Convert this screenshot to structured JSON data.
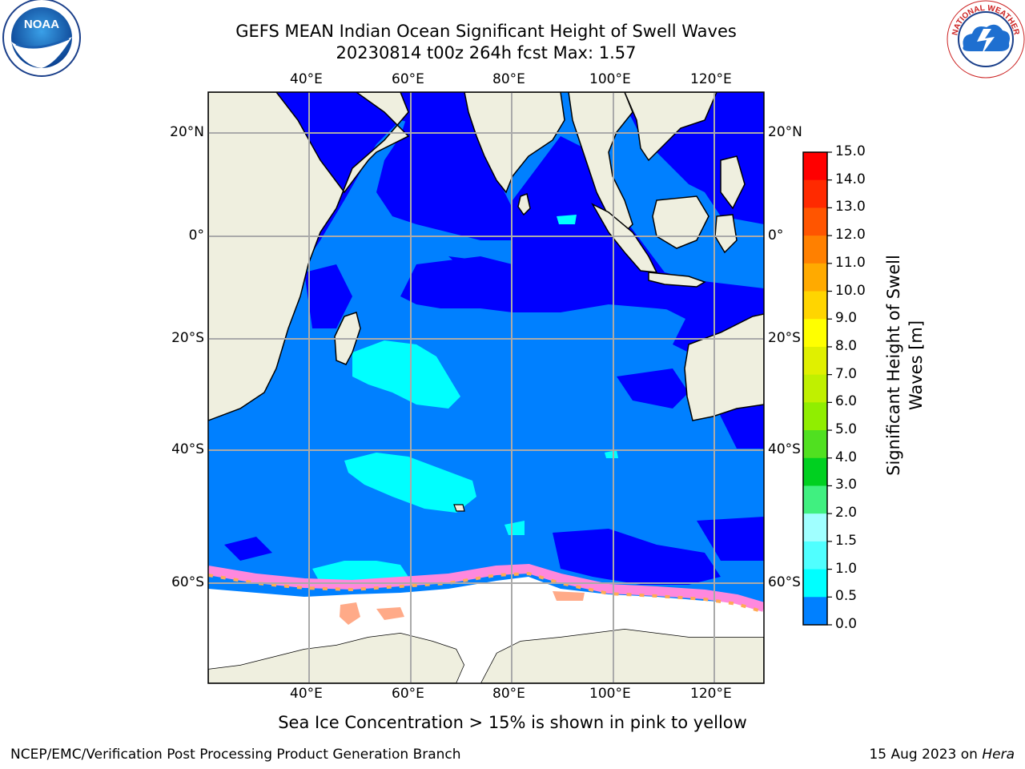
{
  "header": {
    "title_line1": "GEFS MEAN Indian Ocean Significant Height of Swell Waves",
    "title_line2": "20230814 t00z 264h fcst   Max: 1.57"
  },
  "logos": {
    "left": {
      "name": "noara-logo",
      "text": "NOAA"
    },
    "right": {
      "name": "nws-logo",
      "text": "NATIONAL WEATHER SERVICE"
    }
  },
  "map": {
    "lon_ticks": [
      "40°E",
      "60°E",
      "80°E",
      "100°E",
      "120°E"
    ],
    "lat_ticks_left": [
      "20°N",
      "0°",
      "20°S",
      "40°S",
      "60°S"
    ],
    "lat_ticks_right": [
      "20°N",
      "0°",
      "20°S",
      "40°S",
      "60°S"
    ],
    "colors": {
      "land": "#efefdf",
      "sea_ice": "#ffffff",
      "ice_edge": "#ff88dd"
    }
  },
  "colorbar": {
    "label": "Significant Height of Swell Waves [m]",
    "ticks": [
      "15.0",
      "14.0",
      "13.0",
      "12.0",
      "11.0",
      "10.0",
      "9.0",
      "8.0",
      "7.0",
      "6.0",
      "5.0",
      "4.0",
      "3.0",
      "2.0",
      "1.5",
      "1.0",
      "0.5",
      "0.0"
    ],
    "colors_top_to_bottom": [
      "#ff0000",
      "#ff2a00",
      "#ff5500",
      "#ff8000",
      "#ffaa00",
      "#ffd500",
      "#ffff00",
      "#e0f000",
      "#c0f000",
      "#90ee00",
      "#50e020",
      "#00d020",
      "#40f080",
      "#a0ffff",
      "#50ffff",
      "#00ffff",
      "#0080ff",
      "#0000ff"
    ]
  },
  "footer": {
    "note": "Sea Ice Concentration > 15% is shown in pink to yellow",
    "credit_left": "NCEP/EMC/Verification Post Processing Product Generation Branch",
    "credit_right_date": "15 Aug 2023 on ",
    "credit_right_host": "Hera"
  }
}
